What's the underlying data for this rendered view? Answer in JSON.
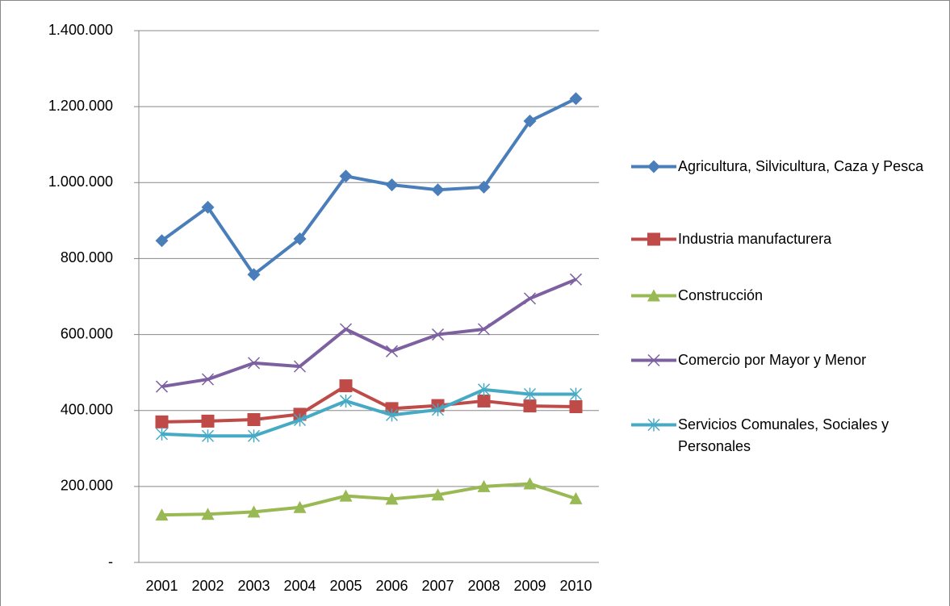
{
  "chart_data": {
    "type": "line",
    "categories": [
      "2001",
      "2002",
      "2003",
      "2004",
      "2005",
      "2006",
      "2007",
      "2008",
      "2009",
      "2010"
    ],
    "series": [
      {
        "name": "Agricultura, Silvicultura, Caza y Pesca",
        "color": "#4a7ebb",
        "marker": "diamond",
        "values": [
          847000,
          935000,
          758000,
          852000,
          1017000,
          994000,
          981000,
          988000,
          1162000,
          1221000
        ]
      },
      {
        "name": "Industria manufacturera",
        "color": "#be4b48",
        "marker": "square",
        "values": [
          370000,
          372000,
          376000,
          390000,
          465000,
          405000,
          413000,
          425000,
          412000,
          410000
        ]
      },
      {
        "name": "Construcción",
        "color": "#98b954",
        "marker": "triangle",
        "values": [
          125000,
          127000,
          133000,
          145000,
          175000,
          167000,
          178000,
          200000,
          207000,
          168000
        ]
      },
      {
        "name": "Comercio por Mayor y Menor",
        "color": "#7d60a0",
        "marker": "x",
        "values": [
          463000,
          482000,
          525000,
          516000,
          614000,
          556000,
          600000,
          614000,
          695000,
          745000
        ]
      },
      {
        "name": "Servicios Comunales, Sociales y Personales",
        "color": "#46aac5",
        "marker": "asterisk",
        "values": [
          338000,
          333000,
          333000,
          375000,
          425000,
          388000,
          402000,
          455000,
          443000,
          443000
        ]
      }
    ],
    "ylim": [
      0,
      1400000
    ],
    "yticks": [
      {
        "value": 0,
        "label": "-"
      },
      {
        "value": 200000,
        "label": "200.000"
      },
      {
        "value": 400000,
        "label": "400.000"
      },
      {
        "value": 600000,
        "label": "600.000"
      },
      {
        "value": 800000,
        "label": "800.000"
      },
      {
        "value": 1000000,
        "label": "1.000.000"
      },
      {
        "value": 1200000,
        "label": "1.200.000"
      },
      {
        "value": 1400000,
        "label": "1.400.000"
      }
    ],
    "grid": true,
    "legend": "right"
  }
}
